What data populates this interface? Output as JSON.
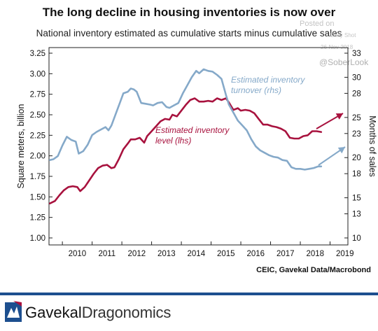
{
  "header": {
    "title": "The long decline in housing inventories is now over",
    "subtitle": "National inventory estimated as cumulative starts minus cumulative sales"
  },
  "watermark": {
    "posted": "Posted on",
    "shot": "Daily Shot",
    "date": "26-Nov-2018",
    "handle": "@SoberLook"
  },
  "footer": {
    "source": "CEIC, Gavekal Data/Macrobond",
    "logo_part1": "Gavekal",
    "logo_part2": "Dragonomics"
  },
  "colors": {
    "level_series": "#a8123e",
    "turnover_series": "#85a9c9",
    "arrow_level": "#a8123e",
    "arrow_turnover": "#85a9c9",
    "footer_bar": "#1d4f8f"
  },
  "chart_data": {
    "type": "line",
    "ylabel": "Square meters, billion",
    "y2label": "Months of sales",
    "x_ticks": [
      "2010",
      "2011",
      "2012",
      "2013",
      "2014",
      "2015",
      "2016",
      "2017",
      "2018",
      "2019"
    ],
    "ylim": [
      1.0,
      3.25
    ],
    "y_ticks": [
      "1.00",
      "1.25",
      "1.50",
      "1.75",
      "2.00",
      "2.25",
      "2.50",
      "2.75",
      "3.00",
      "3.25"
    ],
    "y2lim": [
      10,
      33
    ],
    "y2_ticks": [
      "10",
      "13",
      "15",
      "18",
      "20",
      "23",
      "25",
      "28",
      "30",
      "33"
    ],
    "xlim": [
      2009.55,
      2019.6
    ],
    "grid": false,
    "series": [
      {
        "name": "Estimated inventory level (lhs)",
        "label_line1": "Estimated inventory",
        "label_line2": "level (lhs)",
        "axis": "left",
        "x": [
          2009.58,
          2009.75,
          2009.9,
          2010.05,
          2010.2,
          2010.35,
          2010.5,
          2010.6,
          2010.75,
          2010.9,
          2011.05,
          2011.2,
          2011.35,
          2011.5,
          2011.65,
          2011.75,
          2011.9,
          2012.05,
          2012.2,
          2012.3,
          2012.45,
          2012.6,
          2012.75,
          2012.85,
          2013.0,
          2013.15,
          2013.3,
          2013.45,
          2013.6,
          2013.7,
          2013.85,
          2014.0,
          2014.15,
          2014.3,
          2014.45,
          2014.6,
          2014.75,
          2014.9,
          2015.05,
          2015.2,
          2015.35,
          2015.5,
          2015.6,
          2015.75,
          2015.9,
          2016.0,
          2016.15,
          2016.3,
          2016.45,
          2016.6,
          2016.75,
          2016.9,
          2017.05,
          2017.2,
          2017.35,
          2017.5,
          2017.65,
          2017.8,
          2017.95,
          2018.1,
          2018.25,
          2018.4,
          2018.55,
          2018.7
        ],
        "values": [
          1.42,
          1.45,
          1.52,
          1.58,
          1.62,
          1.63,
          1.62,
          1.57,
          1.62,
          1.7,
          1.78,
          1.85,
          1.88,
          1.89,
          1.85,
          1.86,
          1.96,
          2.08,
          2.15,
          2.2,
          2.2,
          2.22,
          2.16,
          2.24,
          2.3,
          2.36,
          2.42,
          2.45,
          2.44,
          2.5,
          2.48,
          2.55,
          2.62,
          2.68,
          2.7,
          2.66,
          2.66,
          2.67,
          2.66,
          2.7,
          2.68,
          2.7,
          2.65,
          2.56,
          2.58,
          2.55,
          2.56,
          2.55,
          2.52,
          2.45,
          2.38,
          2.38,
          2.36,
          2.35,
          2.33,
          2.3,
          2.22,
          2.21,
          2.21,
          2.24,
          2.25,
          2.3,
          2.3,
          2.29
        ]
      },
      {
        "name": "Estimated inventory turnover (rhs)",
        "label_line1": "Estimated inventory",
        "label_line2": "turnover (rhs)",
        "axis": "right",
        "x": [
          2009.58,
          2009.7,
          2009.85,
          2010.0,
          2010.15,
          2010.3,
          2010.45,
          2010.55,
          2010.7,
          2010.85,
          2011.0,
          2011.15,
          2011.3,
          2011.45,
          2011.55,
          2011.65,
          2011.8,
          2011.95,
          2012.05,
          2012.2,
          2012.3,
          2012.4,
          2012.5,
          2012.65,
          2012.8,
          2012.95,
          2013.05,
          2013.2,
          2013.35,
          2013.5,
          2013.6,
          2013.75,
          2013.9,
          2014.05,
          2014.2,
          2014.35,
          2014.5,
          2014.6,
          2014.75,
          2014.9,
          2015.05,
          2015.2,
          2015.35,
          2015.5,
          2015.6,
          2015.75,
          2015.9,
          2016.05,
          2016.2,
          2016.35,
          2016.5,
          2016.65,
          2016.8,
          2016.95,
          2017.1,
          2017.25,
          2017.4,
          2017.55,
          2017.7,
          2017.85,
          2018.0,
          2018.15,
          2018.3,
          2018.45,
          2018.6,
          2018.7
        ],
        "values": [
          19.7,
          19.8,
          20.2,
          21.5,
          22.6,
          22.2,
          22.0,
          20.5,
          20.8,
          21.6,
          22.8,
          23.2,
          23.5,
          23.8,
          23.4,
          24.0,
          25.5,
          27.0,
          28.0,
          28.2,
          28.6,
          28.5,
          28.2,
          26.8,
          26.7,
          26.6,
          26.5,
          26.8,
          26.9,
          26.3,
          26.2,
          26.5,
          26.8,
          28.0,
          29.0,
          30.0,
          30.8,
          30.5,
          31.0,
          30.8,
          30.7,
          30.3,
          29.8,
          27.8,
          26.6,
          25.6,
          24.6,
          24.0,
          23.4,
          22.3,
          21.4,
          20.9,
          20.6,
          20.3,
          20.1,
          20.0,
          19.7,
          19.6,
          18.8,
          18.6,
          18.6,
          18.5,
          18.6,
          18.7,
          18.9,
          18.9
        ]
      }
    ]
  }
}
